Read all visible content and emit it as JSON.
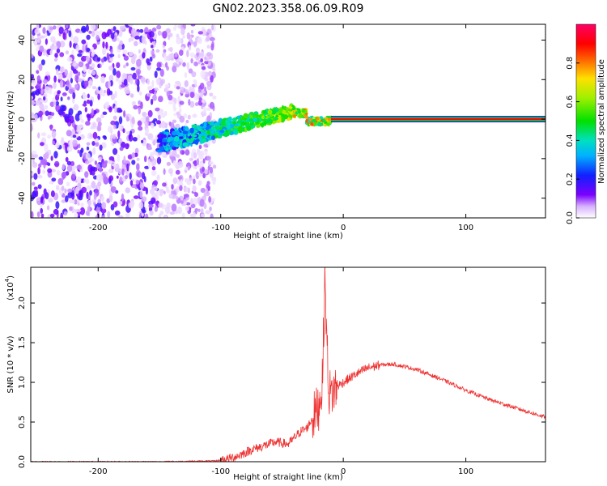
{
  "title": "GN02.2023.358.06.09.R09",
  "chart_data": [
    {
      "type": "heatmap",
      "xlabel": "Height of straight line (km)",
      "ylabel": "Frequency (Hz)",
      "xlim": [
        -255,
        165
      ],
      "ylim": [
        -50,
        48
      ],
      "xticks": [
        -200,
        -100,
        0,
        100
      ],
      "yticks": [
        -40,
        -20,
        0,
        20,
        40
      ],
      "colorbar": {
        "label": "Normalized spectral amplitude",
        "range": [
          0,
          1
        ],
        "ticks": [
          0.0,
          0.2,
          0.4,
          0.6,
          0.8
        ],
        "colormap": "rainbow (white/violet → blue → cyan → green → yellow → red → magenta)"
      },
      "features": [
        {
          "region": "noise",
          "x_range": [
            -255,
            -105
          ],
          "freq_range": [
            -50,
            48
          ]
        },
        {
          "region": "signal-onset",
          "x_range": [
            -150,
            -40
          ],
          "center_freq": [
            -12,
            4
          ]
        },
        {
          "region": "carrier-line",
          "x_range": [
            -10,
            165
          ],
          "center_freq": 0
        }
      ]
    },
    {
      "type": "line",
      "xlabel": "Height of straight line (km)",
      "ylabel": "SNR (10 * v/v)",
      "y_multiplier": "(x10",
      "y_multiplier_exp": "4",
      "xlim": [
        -255,
        165
      ],
      "ylim": [
        0,
        2.45
      ],
      "xticks": [
        -200,
        -100,
        0,
        100
      ],
      "yticks": [
        "0.0",
        "0.5",
        "1.0",
        "1.5",
        "2.0"
      ],
      "color": "#ee3333",
      "series": [
        {
          "x": [
            -255,
            -200,
            -150,
            -105,
            -95,
            -85,
            -75,
            -65,
            -55,
            -45,
            -40,
            -35,
            -30,
            -25,
            -20,
            -17,
            -15,
            -12,
            -10,
            -5,
            0,
            10,
            20,
            30,
            40,
            50,
            60,
            80,
            100,
            120,
            140,
            165
          ],
          "values": [
            0.0,
            0.0,
            0.0,
            0.01,
            0.03,
            0.08,
            0.15,
            0.2,
            0.25,
            0.22,
            0.3,
            0.38,
            0.42,
            0.55,
            0.7,
            1.0,
            2.3,
            0.9,
            0.85,
            0.95,
            1.0,
            1.1,
            1.18,
            1.22,
            1.23,
            1.2,
            1.16,
            1.04,
            0.9,
            0.78,
            0.68,
            0.56
          ]
        }
      ]
    }
  ]
}
